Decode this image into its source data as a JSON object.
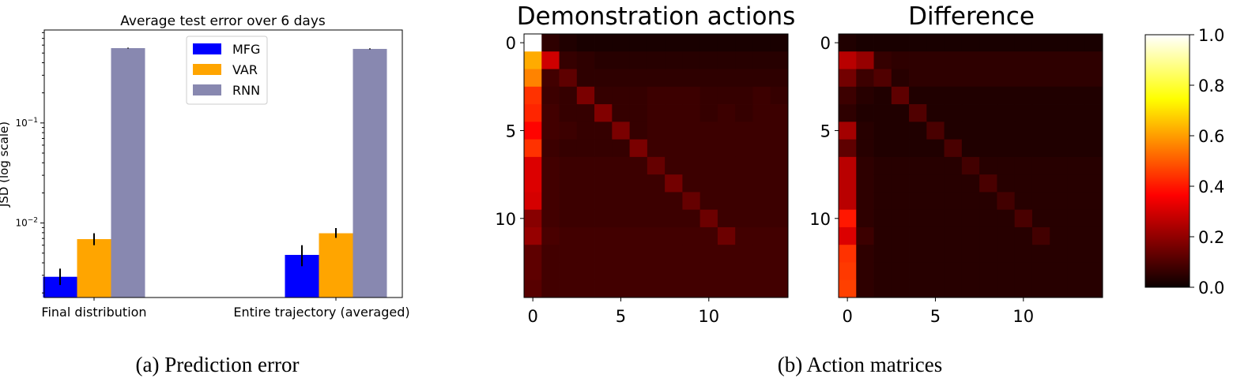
{
  "chart_data": [
    {
      "type": "bar",
      "title": "Average test error over 6 days",
      "ylabel": "JSD (log scale)",
      "yscale": "log",
      "ylim": [
        0.0018,
        0.85
      ],
      "yticks": [
        {
          "value": 0.01,
          "label": "10^-2"
        },
        {
          "value": 0.1,
          "label": "10^-1"
        }
      ],
      "categories": [
        "Final distribution",
        "Entire trajectory (averaged)"
      ],
      "series": [
        {
          "name": "MFG",
          "color": "#0000ff",
          "values": [
            0.0029,
            0.0048
          ],
          "err_low": [
            0.0024,
            0.0037
          ],
          "err_high": [
            0.0035,
            0.006
          ]
        },
        {
          "name": "VAR",
          "color": "#ffa500",
          "values": [
            0.0069,
            0.0079
          ],
          "err_low": [
            0.006,
            0.0071
          ],
          "err_high": [
            0.0079,
            0.0089
          ]
        },
        {
          "name": "RNN",
          "color": "#8888b0",
          "values": [
            0.56,
            0.55
          ],
          "err_low": [
            0.555,
            0.545
          ],
          "err_high": [
            0.565,
            0.556
          ]
        }
      ],
      "legend": "upper-center"
    },
    {
      "type": "heatmap",
      "title": "Demonstration actions",
      "colormap": "hot",
      "xticks": [
        "0",
        "5",
        "10"
      ],
      "yticks": [
        "0",
        "5",
        "10"
      ],
      "matrix": [
        [
          1.0,
          0.05,
          0.03,
          0.02,
          0.02,
          0.02,
          0.02,
          0.02,
          0.02,
          0.02,
          0.02,
          0.02,
          0.02,
          0.02,
          0.02
        ],
        [
          0.62,
          0.28,
          0.06,
          0.05,
          0.04,
          0.04,
          0.04,
          0.04,
          0.04,
          0.04,
          0.04,
          0.04,
          0.04,
          0.04,
          0.04
        ],
        [
          0.56,
          0.08,
          0.12,
          0.05,
          0.05,
          0.05,
          0.05,
          0.05,
          0.05,
          0.05,
          0.05,
          0.05,
          0.05,
          0.05,
          0.05
        ],
        [
          0.44,
          0.07,
          0.06,
          0.16,
          0.06,
          0.06,
          0.06,
          0.07,
          0.07,
          0.07,
          0.06,
          0.06,
          0.06,
          0.07,
          0.06
        ],
        [
          0.42,
          0.08,
          0.06,
          0.06,
          0.17,
          0.06,
          0.06,
          0.07,
          0.07,
          0.07,
          0.06,
          0.07,
          0.06,
          0.07,
          0.07
        ],
        [
          0.37,
          0.08,
          0.07,
          0.06,
          0.06,
          0.16,
          0.06,
          0.07,
          0.07,
          0.07,
          0.07,
          0.07,
          0.07,
          0.07,
          0.07
        ],
        [
          0.44,
          0.07,
          0.06,
          0.06,
          0.06,
          0.06,
          0.16,
          0.07,
          0.07,
          0.07,
          0.07,
          0.07,
          0.07,
          0.07,
          0.07
        ],
        [
          0.3,
          0.08,
          0.07,
          0.07,
          0.07,
          0.07,
          0.07,
          0.13,
          0.07,
          0.07,
          0.07,
          0.07,
          0.07,
          0.07,
          0.07
        ],
        [
          0.3,
          0.08,
          0.07,
          0.07,
          0.07,
          0.07,
          0.07,
          0.07,
          0.15,
          0.07,
          0.07,
          0.07,
          0.07,
          0.07,
          0.07
        ],
        [
          0.29,
          0.08,
          0.07,
          0.07,
          0.07,
          0.07,
          0.07,
          0.07,
          0.07,
          0.13,
          0.07,
          0.07,
          0.07,
          0.07,
          0.07
        ],
        [
          0.18,
          0.08,
          0.07,
          0.07,
          0.07,
          0.07,
          0.07,
          0.07,
          0.07,
          0.07,
          0.14,
          0.07,
          0.07,
          0.07,
          0.07
        ],
        [
          0.2,
          0.09,
          0.08,
          0.08,
          0.08,
          0.08,
          0.08,
          0.08,
          0.08,
          0.08,
          0.08,
          0.14,
          0.08,
          0.08,
          0.08
        ],
        [
          0.12,
          0.08,
          0.08,
          0.08,
          0.08,
          0.08,
          0.08,
          0.08,
          0.08,
          0.08,
          0.08,
          0.08,
          0.08,
          0.08,
          0.08
        ],
        [
          0.12,
          0.08,
          0.08,
          0.08,
          0.08,
          0.08,
          0.08,
          0.08,
          0.08,
          0.08,
          0.08,
          0.08,
          0.08,
          0.08,
          0.08
        ],
        [
          0.11,
          0.08,
          0.08,
          0.08,
          0.08,
          0.08,
          0.08,
          0.08,
          0.08,
          0.08,
          0.08,
          0.08,
          0.08,
          0.08,
          0.08
        ]
      ]
    },
    {
      "type": "heatmap",
      "title": "Difference",
      "colormap": "hot",
      "xticks": [
        "0",
        "5",
        "10"
      ],
      "yticks": [
        "0",
        "5",
        "10"
      ],
      "matrix": [
        [
          0.03,
          0.02,
          0.02,
          0.02,
          0.02,
          0.02,
          0.02,
          0.02,
          0.02,
          0.02,
          0.02,
          0.02,
          0.02,
          0.02,
          0.02
        ],
        [
          0.25,
          0.2,
          0.06,
          0.05,
          0.05,
          0.05,
          0.05,
          0.05,
          0.05,
          0.05,
          0.05,
          0.05,
          0.05,
          0.05,
          0.05
        ],
        [
          0.15,
          0.07,
          0.1,
          0.04,
          0.05,
          0.05,
          0.05,
          0.05,
          0.05,
          0.05,
          0.05,
          0.05,
          0.05,
          0.05,
          0.05
        ],
        [
          0.07,
          0.04,
          0.03,
          0.12,
          0.03,
          0.03,
          0.03,
          0.03,
          0.03,
          0.03,
          0.03,
          0.03,
          0.03,
          0.03,
          0.03
        ],
        [
          0.05,
          0.03,
          0.03,
          0.03,
          0.1,
          0.03,
          0.03,
          0.03,
          0.03,
          0.03,
          0.03,
          0.03,
          0.03,
          0.03,
          0.03
        ],
        [
          0.22,
          0.04,
          0.03,
          0.03,
          0.03,
          0.09,
          0.03,
          0.03,
          0.03,
          0.03,
          0.03,
          0.03,
          0.03,
          0.03,
          0.03
        ],
        [
          0.12,
          0.04,
          0.03,
          0.03,
          0.03,
          0.03,
          0.09,
          0.03,
          0.03,
          0.03,
          0.03,
          0.03,
          0.03,
          0.03,
          0.03
        ],
        [
          0.25,
          0.05,
          0.04,
          0.04,
          0.04,
          0.04,
          0.04,
          0.08,
          0.04,
          0.04,
          0.04,
          0.04,
          0.04,
          0.04,
          0.04
        ],
        [
          0.25,
          0.05,
          0.04,
          0.04,
          0.04,
          0.04,
          0.04,
          0.04,
          0.09,
          0.04,
          0.04,
          0.04,
          0.04,
          0.04,
          0.04
        ],
        [
          0.25,
          0.05,
          0.04,
          0.04,
          0.04,
          0.04,
          0.04,
          0.04,
          0.04,
          0.08,
          0.04,
          0.04,
          0.04,
          0.04,
          0.04
        ],
        [
          0.4,
          0.05,
          0.04,
          0.04,
          0.04,
          0.04,
          0.04,
          0.04,
          0.04,
          0.04,
          0.09,
          0.04,
          0.04,
          0.04,
          0.04
        ],
        [
          0.3,
          0.07,
          0.04,
          0.04,
          0.04,
          0.04,
          0.04,
          0.04,
          0.04,
          0.04,
          0.04,
          0.08,
          0.04,
          0.04,
          0.04
        ],
        [
          0.44,
          0.05,
          0.04,
          0.04,
          0.04,
          0.04,
          0.04,
          0.04,
          0.04,
          0.04,
          0.04,
          0.04,
          0.04,
          0.04,
          0.04
        ],
        [
          0.45,
          0.05,
          0.04,
          0.04,
          0.04,
          0.04,
          0.04,
          0.04,
          0.04,
          0.04,
          0.04,
          0.04,
          0.04,
          0.04,
          0.04
        ],
        [
          0.46,
          0.05,
          0.04,
          0.04,
          0.04,
          0.04,
          0.04,
          0.04,
          0.04,
          0.04,
          0.04,
          0.04,
          0.04,
          0.04,
          0.04
        ]
      ]
    }
  ],
  "colorbar": {
    "ticks": [
      "0.0",
      "0.2",
      "0.4",
      "0.6",
      "0.8",
      "1.0"
    ],
    "range": [
      0,
      1
    ]
  },
  "captions": {
    "a": "(a) Prediction error",
    "b": "(b) Action matrices"
  }
}
